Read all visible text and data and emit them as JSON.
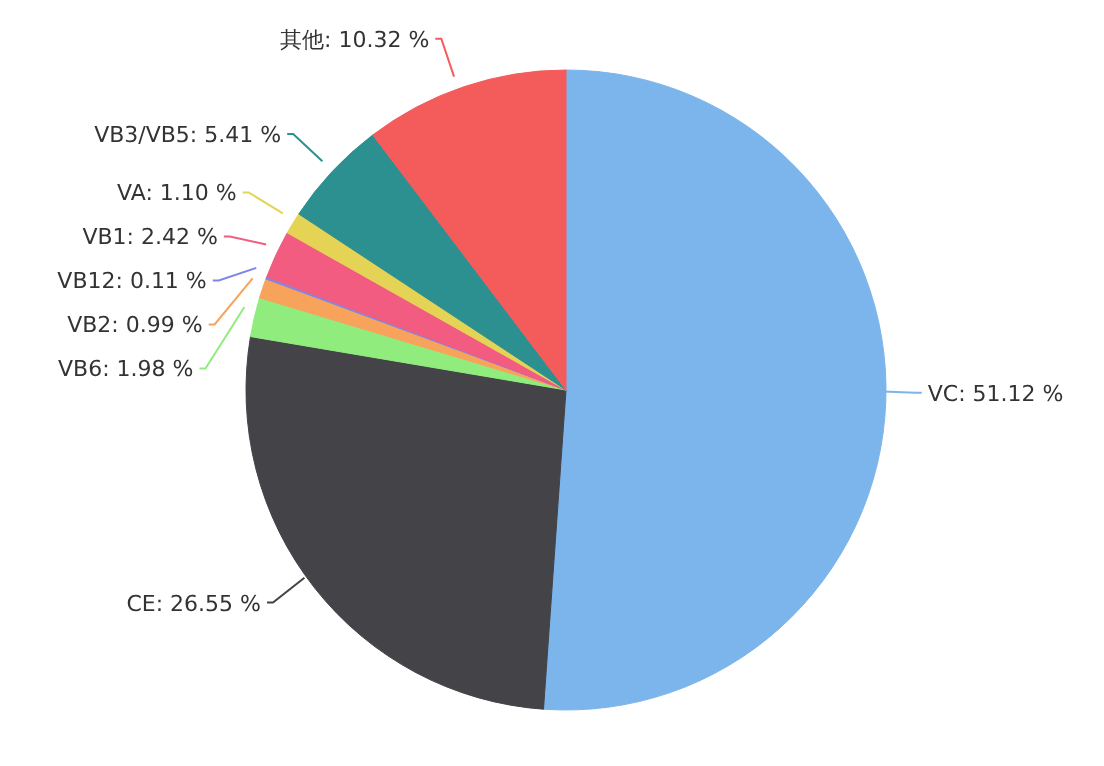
{
  "chart_data": {
    "type": "pie",
    "categories": [
      "VC",
      "CE",
      "VB6",
      "VB2",
      "VB12",
      "VB1",
      "VA",
      "VB3/VB5",
      "其他"
    ],
    "values": [
      51.12,
      26.55,
      1.98,
      0.99,
      0.11,
      2.42,
      1.1,
      5.41,
      10.32
    ],
    "value_labels": [
      "51.12 %",
      "26.55 %",
      "1.98 %",
      "0.99 %",
      "0.11 %",
      "2.42 %",
      "1.10 %",
      "5.41 %",
      "10.32 %"
    ],
    "colors": [
      "#7cb5ec",
      "#434348",
      "#90ed7d",
      "#f7a35c",
      "#8085e9",
      "#f15c80",
      "#e4d354",
      "#2b908f",
      "#f45b5b"
    ],
    "legend": false
  }
}
